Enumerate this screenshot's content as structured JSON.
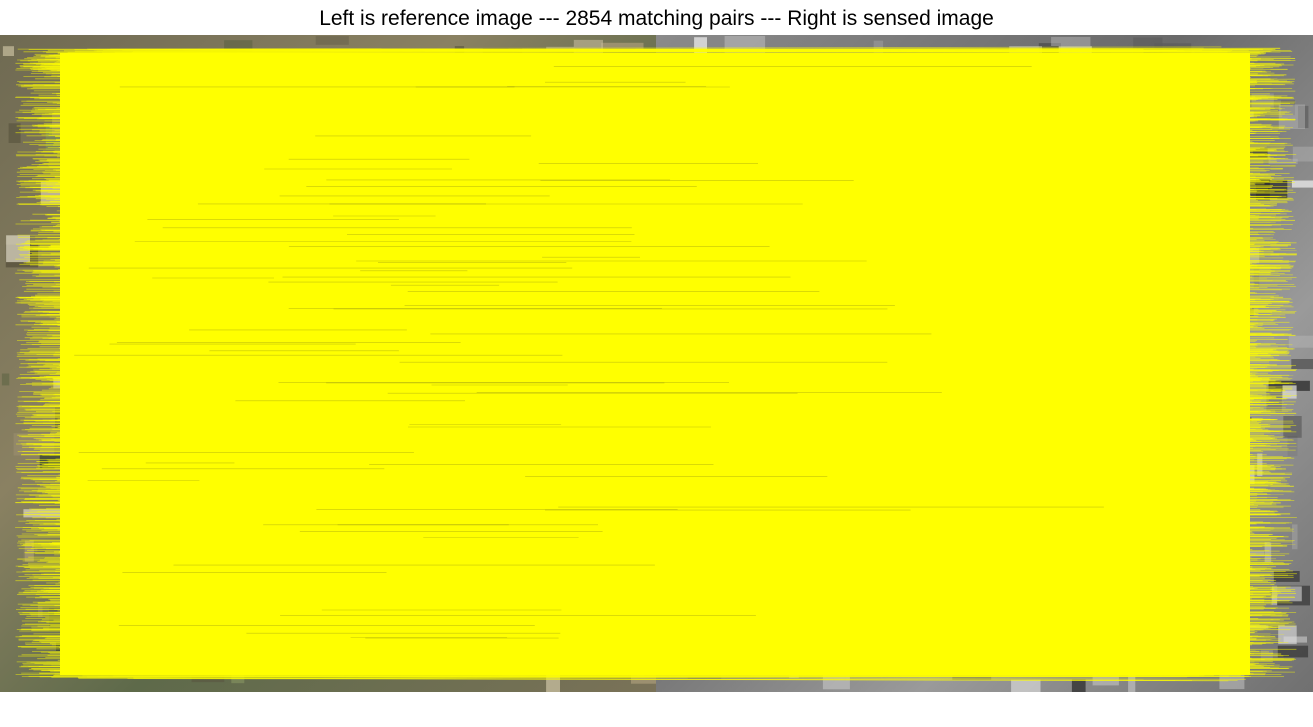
{
  "figure": {
    "title": "Left is reference image --- 2854 matching pairs --- Right is sensed image",
    "left_panel": "reference image",
    "right_panel": "sensed image",
    "match_count": 2854,
    "match_line_color": "#ffff00",
    "left_panel_style": "color satellite imagery",
    "right_panel_style": "grayscale satellite imagery"
  }
}
